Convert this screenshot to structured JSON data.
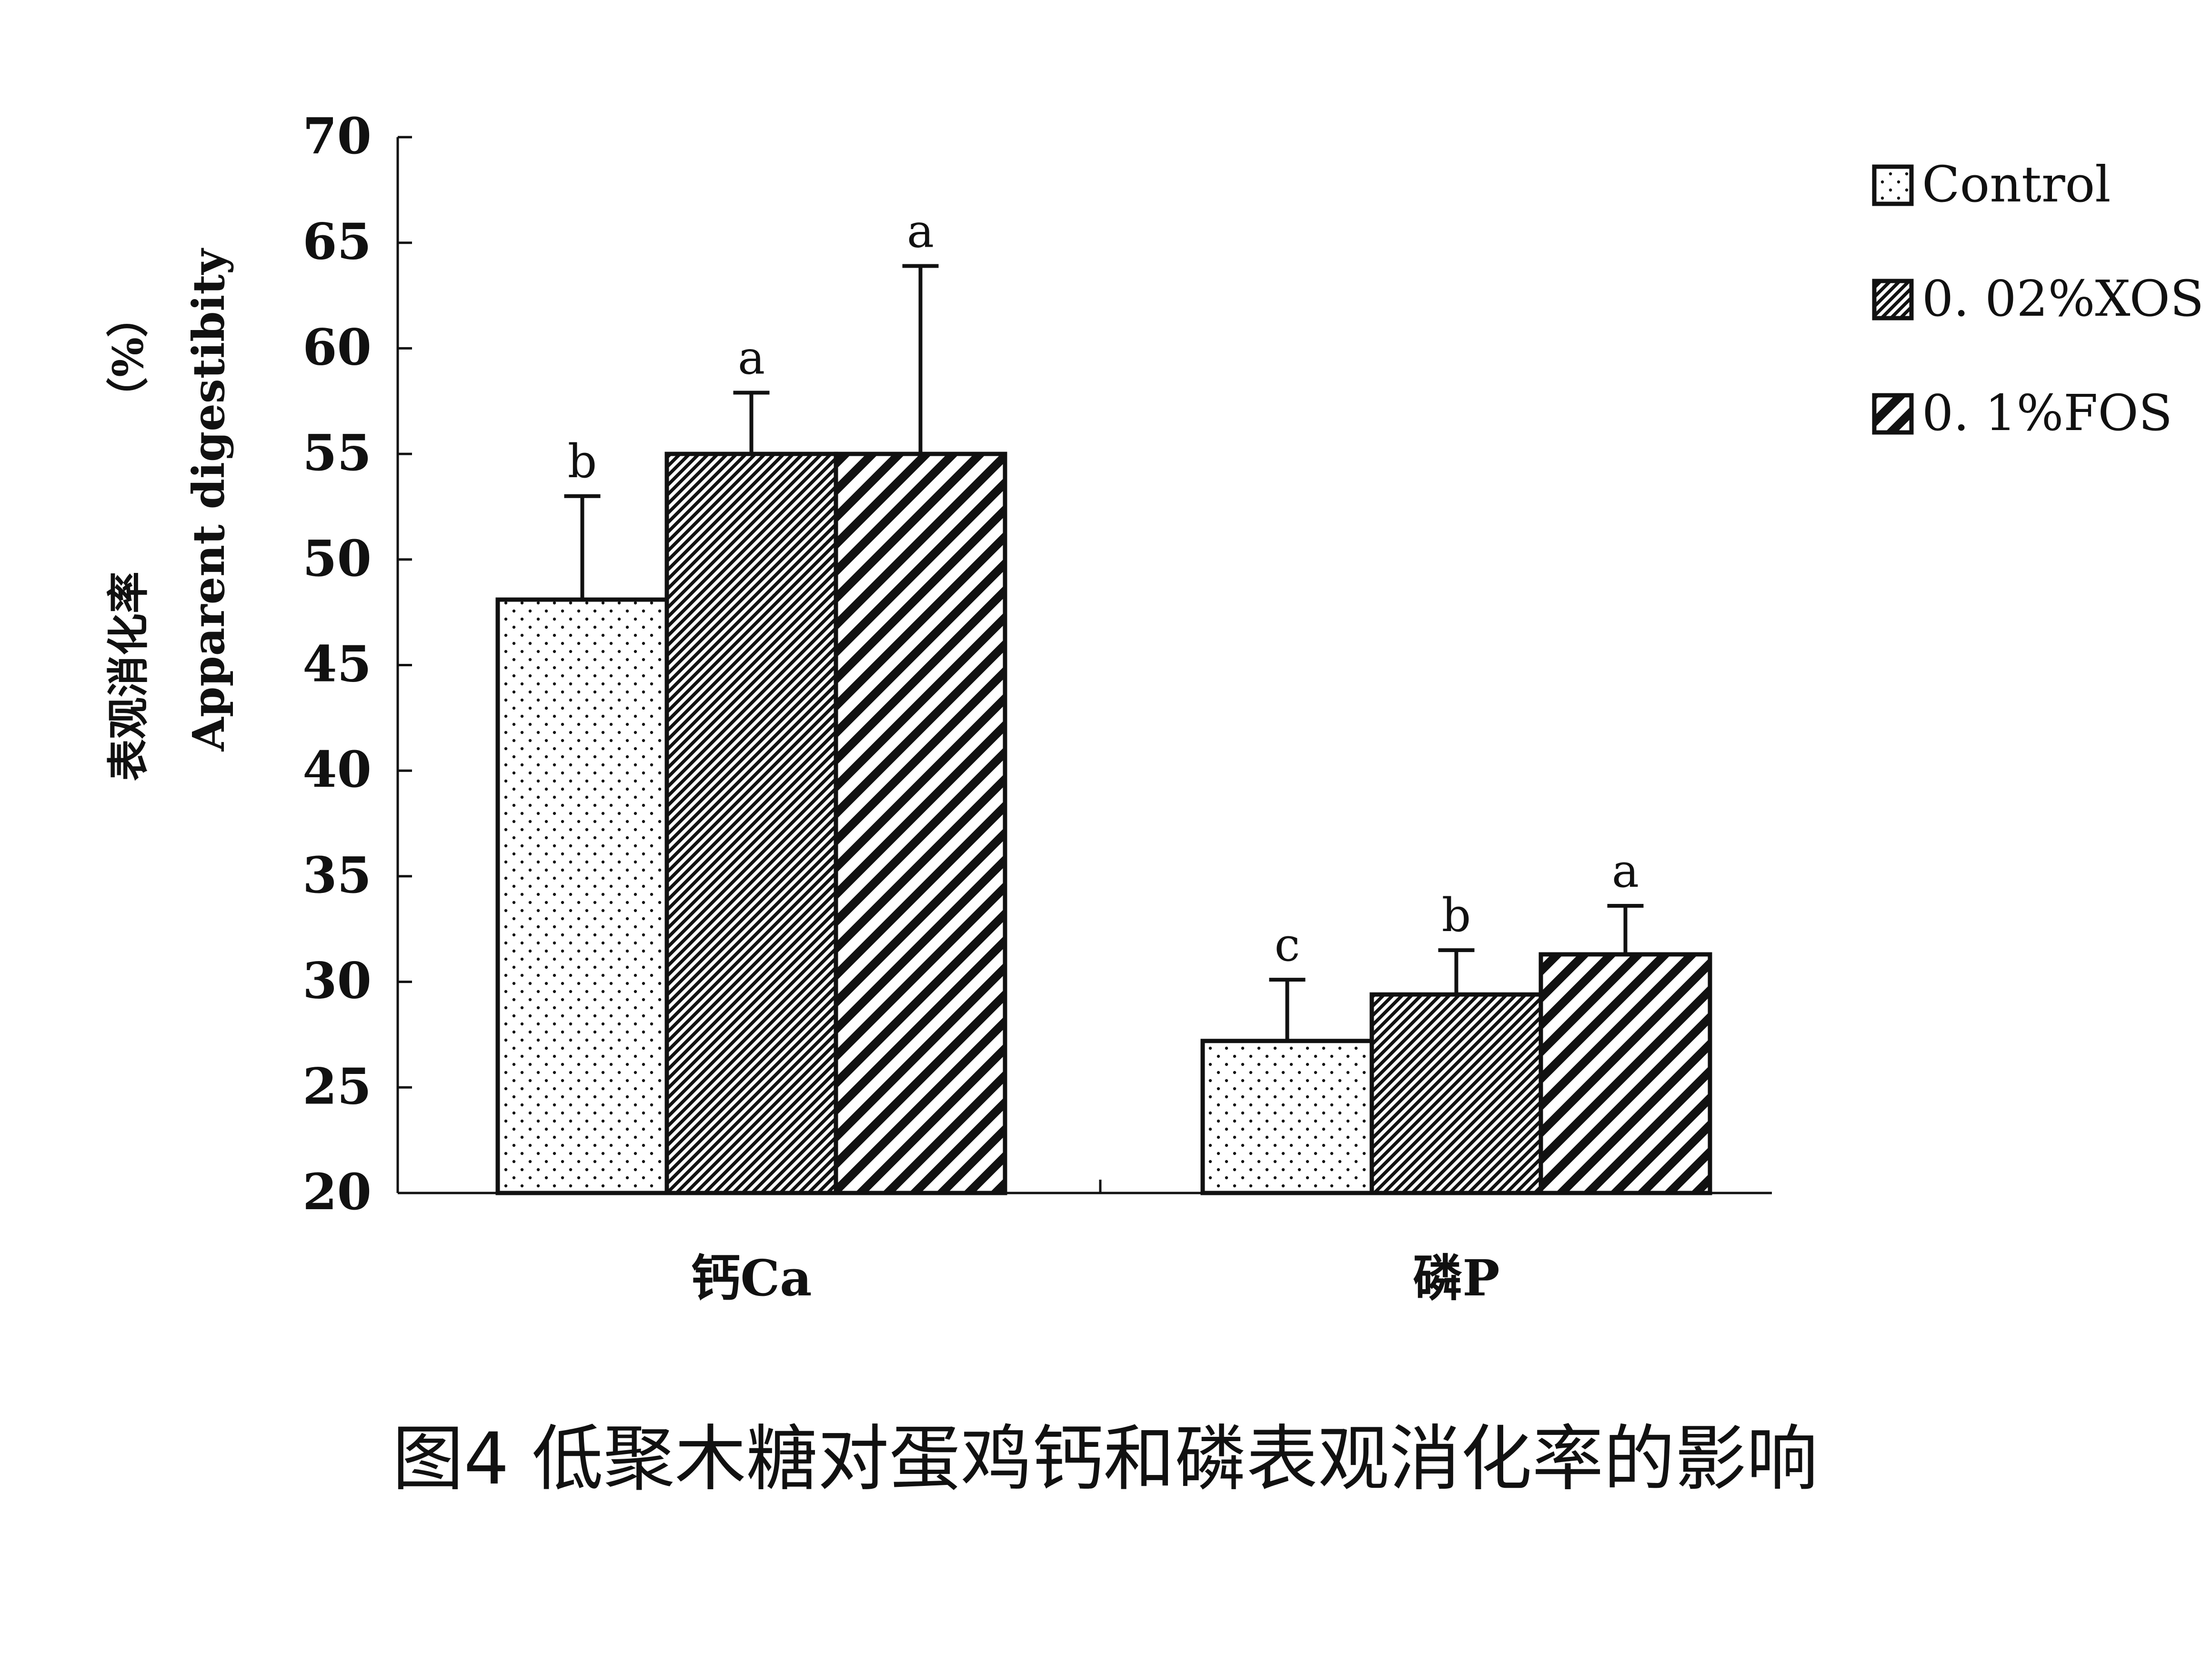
{
  "chart_data": {
    "type": "bar",
    "caption": "图4 低聚木糖对蛋鸡钙和磷表观消化率的影响",
    "ylabel_cn": "表观消化率",
    "ylabel_en": "Apparent digestibity",
    "ylabel_unit": "（%）",
    "ylim": [
      20,
      70
    ],
    "yticks": [
      "20",
      "25",
      "30",
      "35",
      "40",
      "45",
      "50",
      "55",
      "60",
      "65",
      "70"
    ],
    "categories": [
      "钙Ca",
      "磷P"
    ],
    "series": [
      {
        "name": "Control",
        "pattern": "dots",
        "values": [
          48.1,
          27.2
        ],
        "errors": [
          4.9,
          2.9
        ],
        "letters": [
          "b",
          "c"
        ]
      },
      {
        "name": "0. 02%XOS",
        "pattern": "dense-hatch",
        "values": [
          55.0,
          29.4
        ],
        "errors": [
          2.9,
          2.1
        ],
        "letters": [
          "a",
          "b"
        ]
      },
      {
        "name": "0. 1%FOS",
        "pattern": "wide-hatch",
        "values": [
          55.0,
          31.3
        ],
        "errors": [
          8.9,
          2.3
        ],
        "letters": [
          "a",
          "a"
        ]
      }
    ],
    "legend_position": "top-right",
    "grid": false,
    "colors": {
      "bar_outline": "#111111",
      "pattern_ink": "#111111",
      "background": "#ffffff"
    }
  }
}
